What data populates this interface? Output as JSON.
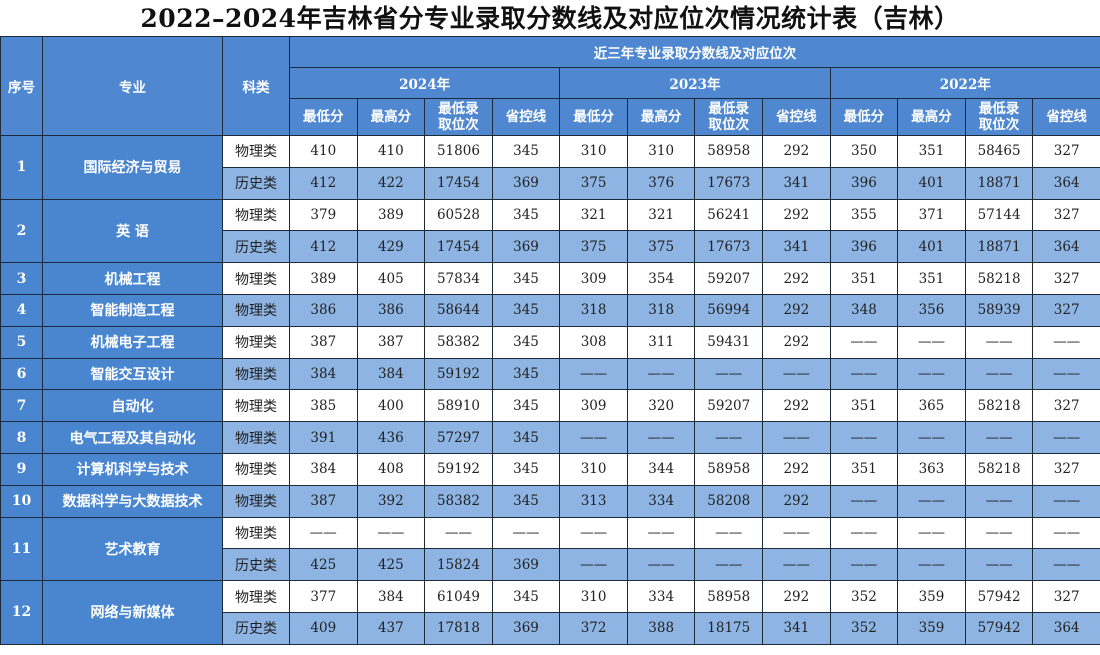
{
  "title": "2022–2024年吉林省分专业录取分数线及对应位次情况统计表（吉林）",
  "colors": {
    "header_blue": "#4f88d0",
    "row_blue": "#8db4e3",
    "row_white": "#ffffff",
    "border": "#1d2a38"
  },
  "header": {
    "seq": "序号",
    "major": "专业",
    "type": "科类",
    "group": "近三年专业录取分数线及对应位次",
    "years": [
      "2024年",
      "2023年",
      "2022年"
    ],
    "sub": [
      "最低分",
      "最高分",
      "最低录取位次",
      "省控线"
    ]
  },
  "rows": [
    {
      "id": "1",
      "major": "国际经济与贸易",
      "entries": [
        {
          "type": "物理类",
          "values": [
            "410",
            "410",
            "51806",
            "345",
            "310",
            "310",
            "58958",
            "292",
            "350",
            "351",
            "58465",
            "327"
          ]
        },
        {
          "type": "历史类",
          "values": [
            "412",
            "422",
            "17454",
            "369",
            "375",
            "376",
            "17673",
            "341",
            "396",
            "401",
            "18871",
            "364"
          ]
        }
      ]
    },
    {
      "id": "2",
      "major": "英 语",
      "entries": [
        {
          "type": "物理类",
          "values": [
            "379",
            "389",
            "60528",
            "345",
            "321",
            "321",
            "56241",
            "292",
            "355",
            "371",
            "57144",
            "327"
          ]
        },
        {
          "type": "历史类",
          "values": [
            "412",
            "429",
            "17454",
            "369",
            "375",
            "375",
            "17673",
            "341",
            "396",
            "401",
            "18871",
            "364"
          ]
        }
      ]
    },
    {
      "id": "3",
      "major": "机械工程",
      "entries": [
        {
          "type": "物理类",
          "values": [
            "389",
            "405",
            "57834",
            "345",
            "309",
            "354",
            "59207",
            "292",
            "351",
            "351",
            "58218",
            "327"
          ]
        }
      ]
    },
    {
      "id": "4",
      "major": "智能制造工程",
      "entries": [
        {
          "type": "物理类",
          "values": [
            "386",
            "386",
            "58644",
            "345",
            "318",
            "318",
            "56994",
            "292",
            "348",
            "356",
            "58939",
            "327"
          ]
        }
      ]
    },
    {
      "id": "5",
      "major": "机械电子工程",
      "entries": [
        {
          "type": "物理类",
          "values": [
            "387",
            "387",
            "58382",
            "345",
            "308",
            "311",
            "59431",
            "292",
            "——",
            "——",
            "——",
            "——"
          ]
        }
      ]
    },
    {
      "id": "6",
      "major": "智能交互设计",
      "entries": [
        {
          "type": "物理类",
          "values": [
            "384",
            "384",
            "59192",
            "345",
            "——",
            "——",
            "——",
            "——",
            "——",
            "——",
            "——",
            "——"
          ]
        }
      ]
    },
    {
      "id": "7",
      "major": "自动化",
      "entries": [
        {
          "type": "物理类",
          "values": [
            "385",
            "400",
            "58910",
            "345",
            "309",
            "320",
            "59207",
            "292",
            "351",
            "365",
            "58218",
            "327"
          ]
        }
      ]
    },
    {
      "id": "8",
      "major": "电气工程及其自动化",
      "entries": [
        {
          "type": "物理类",
          "values": [
            "391",
            "436",
            "57297",
            "345",
            "——",
            "——",
            "——",
            "——",
            "——",
            "——",
            "——",
            "——"
          ]
        }
      ]
    },
    {
      "id": "9",
      "major": "计算机科学与技术",
      "entries": [
        {
          "type": "物理类",
          "values": [
            "384",
            "408",
            "59192",
            "345",
            "310",
            "344",
            "58958",
            "292",
            "351",
            "363",
            "58218",
            "327"
          ]
        }
      ]
    },
    {
      "id": "10",
      "major": "数据科学与大数据技术",
      "entries": [
        {
          "type": "物理类",
          "values": [
            "387",
            "392",
            "58382",
            "345",
            "313",
            "334",
            "58208",
            "292",
            "——",
            "——",
            "——",
            "——"
          ]
        }
      ]
    },
    {
      "id": "11",
      "major": "艺术教育",
      "entries": [
        {
          "type": "物理类",
          "values": [
            "——",
            "——",
            "——",
            "——",
            "——",
            "——",
            "——",
            "——",
            "——",
            "——",
            "——",
            "——"
          ]
        },
        {
          "type": "历史类",
          "values": [
            "425",
            "425",
            "15824",
            "369",
            "——",
            "——",
            "——",
            "——",
            "——",
            "——",
            "——",
            "——"
          ]
        }
      ]
    },
    {
      "id": "12",
      "major": "网络与新媒体",
      "entries": [
        {
          "type": "物理类",
          "values": [
            "377",
            "384",
            "61049",
            "345",
            "310",
            "334",
            "58958",
            "292",
            "352",
            "359",
            "57942",
            "327"
          ]
        },
        {
          "type": "历史类",
          "values": [
            "409",
            "437",
            "17818",
            "369",
            "372",
            "388",
            "18175",
            "341",
            "352",
            "359",
            "57942",
            "364"
          ]
        }
      ]
    }
  ]
}
